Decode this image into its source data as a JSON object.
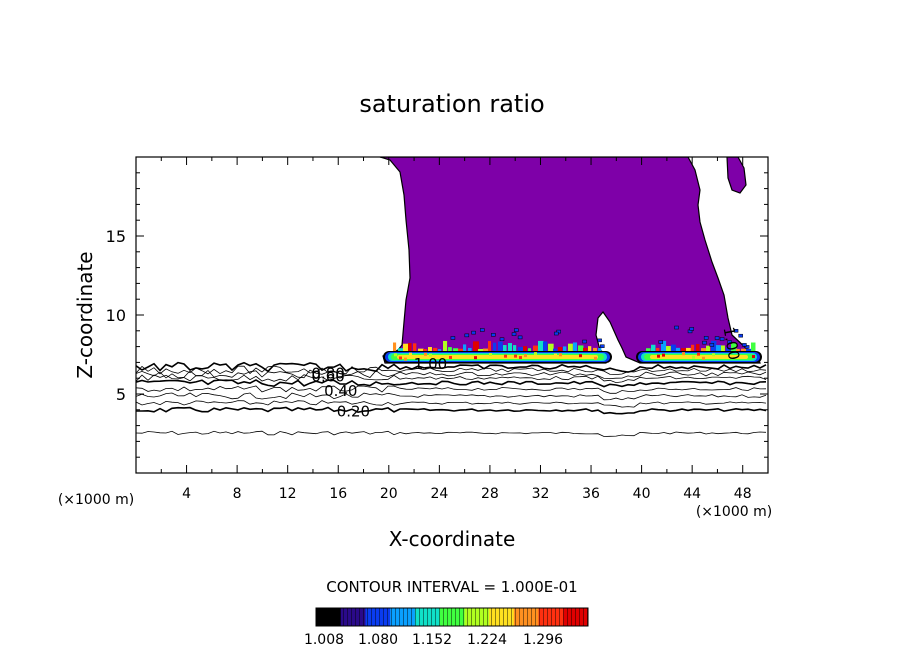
{
  "chart_data": {
    "type": "contour",
    "title": "saturation ratio",
    "xlabel": "X-coordinate",
    "ylabel": "Z-coordinate",
    "x_unit_left": "(×1000 m)",
    "x_unit_right": "(×1000 m)",
    "xlim": [
      0,
      50
    ],
    "ylim": [
      0,
      20
    ],
    "x_ticks": [
      4,
      8,
      12,
      16,
      20,
      24,
      28,
      32,
      36,
      40,
      44,
      48
    ],
    "x_tick_labels": [
      "4",
      "8",
      "12",
      "16",
      "20",
      "24",
      "28",
      "32",
      "36",
      "40",
      "44",
      "48"
    ],
    "y_ticks": [
      5,
      10,
      15
    ],
    "y_tick_labels": [
      "5",
      "10",
      "15"
    ],
    "contour_line_labels": [
      {
        "text": "0.20",
        "x": 17.2,
        "z": 3.9
      },
      {
        "text": "0.40",
        "x": 16.2,
        "z": 5.2
      },
      {
        "text": "0.60",
        "x": 15.2,
        "z": 6.1
      },
      {
        "text": "0.80",
        "x": 15.2,
        "z": 6.3
      },
      {
        "text": "1.00",
        "x": 23.3,
        "z": 6.9
      },
      {
        "text": "1.00",
        "x": 47.1,
        "z": 8.2
      }
    ],
    "contour_interval_text": "CONTOUR INTERVAL = 1.000E-01",
    "colorbar": {
      "tick_labels": [
        "1.008",
        "1.080",
        "1.152",
        "1.224",
        "1.296"
      ],
      "colors": [
        "#000000",
        "#2a0a8a",
        "#0a3cf0",
        "#0aa0ff",
        "#10e0c8",
        "#40ff40",
        "#b0ff20",
        "#ffe020",
        "#ff9020",
        "#ff3010",
        "#e00000"
      ]
    },
    "colors": {
      "supersaturated_fill": "#7e00a8",
      "line": "#000000"
    }
  }
}
